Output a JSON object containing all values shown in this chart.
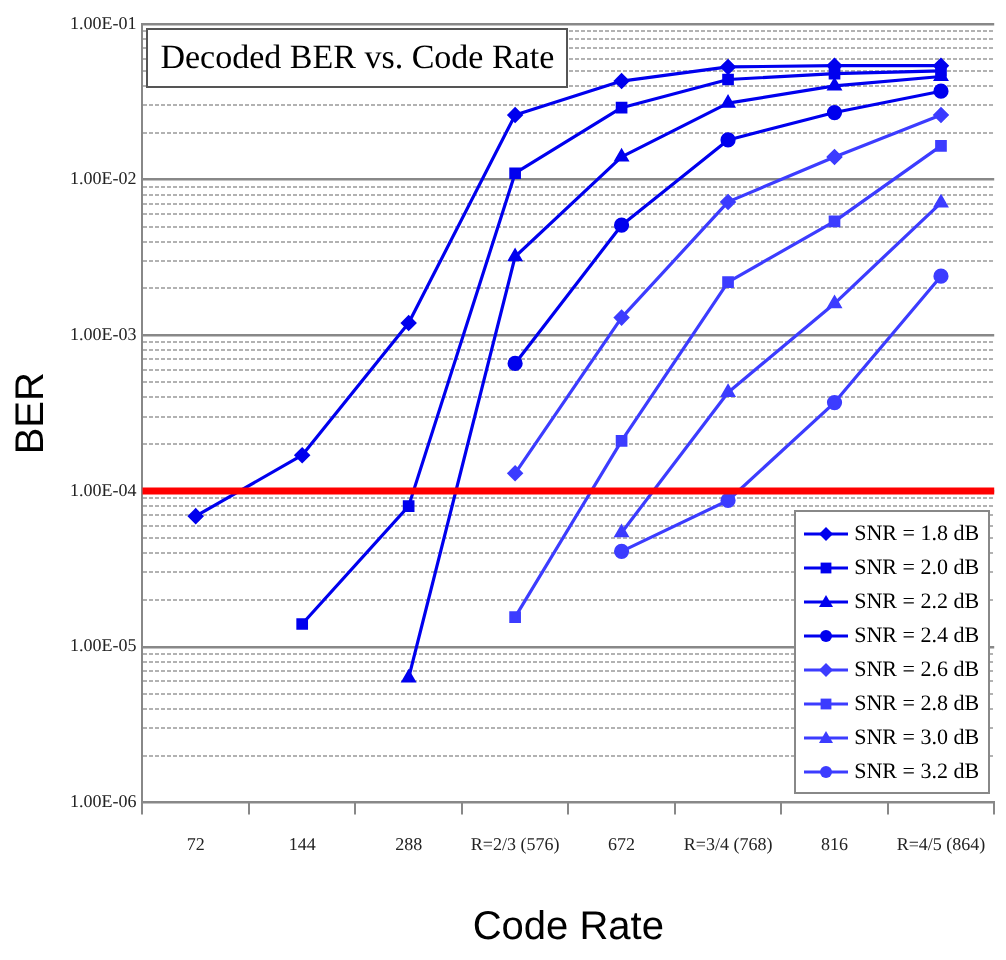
{
  "chart_data": {
    "type": "line",
    "title": "Decoded BER vs. Code Rate",
    "xlabel": "Code Rate",
    "ylabel": "BER",
    "categories": [
      "72",
      "144",
      "288",
      "R=2/3 (576)",
      "672",
      "R=3/4 (768)",
      "816",
      "R=4/5 (864)"
    ],
    "series": [
      {
        "name": "SNR = 1.8 dB",
        "color": "#0000ee",
        "marker": "diamond",
        "values": [
          6.9e-05,
          0.00017,
          0.0012,
          0.026,
          0.043,
          0.053,
          0.054,
          0.054
        ]
      },
      {
        "name": "SNR = 2.0 dB",
        "color": "#0000ee",
        "marker": "square",
        "values": [
          null,
          1.4e-05,
          8e-05,
          0.011,
          0.029,
          0.044,
          0.048,
          0.05
        ]
      },
      {
        "name": "SNR = 2.2 dB",
        "color": "#0000ee",
        "marker": "triangle",
        "values": [
          null,
          null,
          6.3e-06,
          0.0032,
          0.014,
          0.031,
          0.04,
          0.046
        ]
      },
      {
        "name": "SNR = 2.4 dB",
        "color": "#0000ee",
        "marker": "circle",
        "values": [
          null,
          null,
          null,
          0.00066,
          0.0051,
          0.018,
          0.027,
          0.037
        ]
      },
      {
        "name": "SNR = 2.6 dB",
        "color": "#3c3cff",
        "marker": "diamond",
        "values": [
          null,
          null,
          null,
          0.00013,
          0.0013,
          0.0072,
          0.014,
          0.026
        ]
      },
      {
        "name": "SNR = 2.8 dB",
        "color": "#3c3cff",
        "marker": "square",
        "values": [
          null,
          null,
          null,
          1.55e-05,
          0.00021,
          0.0022,
          0.0054,
          0.0165
        ]
      },
      {
        "name": "SNR = 3.0 dB",
        "color": "#3c3cff",
        "marker": "triangle",
        "values": [
          null,
          null,
          null,
          null,
          5.4e-05,
          0.00043,
          0.0016,
          0.0071
        ]
      },
      {
        "name": "SNR = 3.2 dB",
        "color": "#3c3cff",
        "marker": "circle",
        "values": [
          null,
          null,
          null,
          null,
          4.1e-05,
          8.7e-05,
          0.00037,
          0.0024
        ]
      }
    ],
    "log": "y",
    "ylim": [
      1e-06,
      0.1
    ],
    "yticks": [
      {
        "value": 1e-06,
        "label": "1.00E-06"
      },
      {
        "value": 2e-06,
        "label": null
      },
      {
        "value": 3e-06,
        "label": null
      },
      {
        "value": 4e-06,
        "label": null
      },
      {
        "value": 5e-06,
        "label": null
      },
      {
        "value": 6e-06,
        "label": null
      },
      {
        "value": 7e-06,
        "label": null
      },
      {
        "value": 8e-06,
        "label": null
      },
      {
        "value": 9e-06,
        "label": null
      },
      {
        "value": 1e-05,
        "label": "1.00E-05"
      },
      {
        "value": 2e-05,
        "label": null
      },
      {
        "value": 3e-05,
        "label": null
      },
      {
        "value": 4e-05,
        "label": null
      },
      {
        "value": 5e-05,
        "label": null
      },
      {
        "value": 6e-05,
        "label": null
      },
      {
        "value": 7e-05,
        "label": null
      },
      {
        "value": 8e-05,
        "label": null
      },
      {
        "value": 9e-05,
        "label": null
      },
      {
        "value": 0.0001,
        "label": "1.00E-04"
      },
      {
        "value": 0.0002,
        "label": null
      },
      {
        "value": 0.0003,
        "label": null
      },
      {
        "value": 0.0004,
        "label": null
      },
      {
        "value": 0.0005,
        "label": null
      },
      {
        "value": 0.0006,
        "label": null
      },
      {
        "value": 0.0007,
        "label": null
      },
      {
        "value": 0.0008,
        "label": null
      },
      {
        "value": 0.0009,
        "label": null
      },
      {
        "value": 0.001,
        "label": "1.00E-03"
      },
      {
        "value": 0.002,
        "label": null
      },
      {
        "value": 0.003,
        "label": null
      },
      {
        "value": 0.004,
        "label": null
      },
      {
        "value": 0.005,
        "label": null
      },
      {
        "value": 0.006,
        "label": null
      },
      {
        "value": 0.007,
        "label": null
      },
      {
        "value": 0.008,
        "label": null
      },
      {
        "value": 0.009,
        "label": null
      },
      {
        "value": 0.01,
        "label": "1.00E-02"
      },
      {
        "value": 0.02,
        "label": null
      },
      {
        "value": 0.03,
        "label": null
      },
      {
        "value": 0.04,
        "label": null
      },
      {
        "value": 0.05,
        "label": null
      },
      {
        "value": 0.06,
        "label": null
      },
      {
        "value": 0.07,
        "label": null
      },
      {
        "value": 0.08,
        "label": null
      },
      {
        "value": 0.09,
        "label": null
      },
      {
        "value": 0.1,
        "label": "1.00E-01"
      }
    ],
    "grid": "y",
    "legend": "bottom right",
    "line_style": "solid",
    "ref_lines": [
      {
        "axis": "y",
        "value": 0.0001,
        "color": "#ff0000"
      }
    ]
  }
}
